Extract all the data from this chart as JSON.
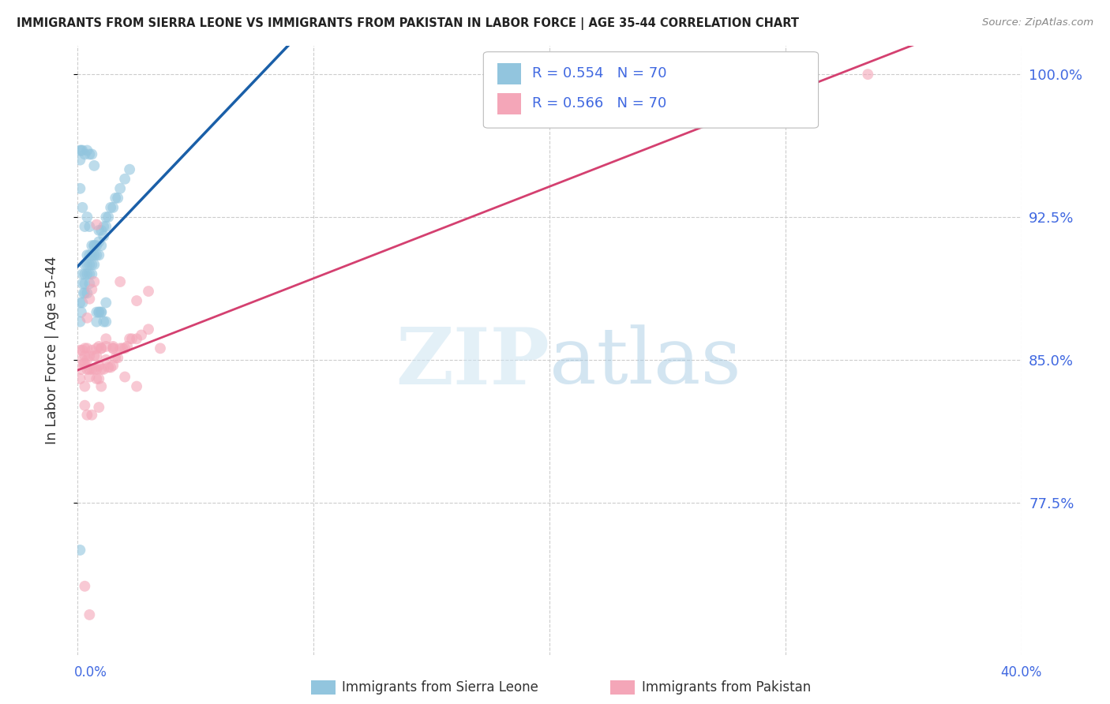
{
  "title": "IMMIGRANTS FROM SIERRA LEONE VS IMMIGRANTS FROM PAKISTAN IN LABOR FORCE | AGE 35-44 CORRELATION CHART",
  "source": "Source: ZipAtlas.com",
  "ylabel": "In Labor Force | Age 35-44",
  "legend_label_blue": "Immigrants from Sierra Leone",
  "legend_label_pink": "Immigrants from Pakistan",
  "legend_r_blue": "R = 0.554   N = 70",
  "legend_r_pink": "R = 0.566   N = 70",
  "watermark_zip": "ZIP",
  "watermark_atlas": "atlas",
  "color_blue": "#92c5de",
  "color_pink": "#f4a6b8",
  "color_trend_blue": "#1a5fa8",
  "color_trend_pink": "#d44070",
  "color_axis_right": "#4169E1",
  "color_legend_text": "#4169E1",
  "xmin": 0.0,
  "xmax": 0.4,
  "ymin": 0.695,
  "ymax": 1.015,
  "yticks": [
    0.775,
    0.85,
    0.925,
    1.0
  ],
  "ytick_labels": [
    "77.5%",
    "85.0%",
    "92.5%",
    "100.0%"
  ],
  "sierra_leone_x": [
    0.001,
    0.001,
    0.0015,
    0.002,
    0.002,
    0.002,
    0.0025,
    0.003,
    0.003,
    0.003,
    0.003,
    0.004,
    0.004,
    0.004,
    0.004,
    0.005,
    0.005,
    0.005,
    0.005,
    0.006,
    0.006,
    0.006,
    0.007,
    0.007,
    0.007,
    0.008,
    0.008,
    0.009,
    0.009,
    0.009,
    0.01,
    0.01,
    0.011,
    0.011,
    0.012,
    0.012,
    0.013,
    0.014,
    0.015,
    0.016,
    0.017,
    0.018,
    0.02,
    0.022,
    0.001,
    0.001,
    0.0015,
    0.002,
    0.003,
    0.004,
    0.005,
    0.006,
    0.007,
    0.008,
    0.009,
    0.01,
    0.012,
    0.001,
    0.002,
    0.003,
    0.004,
    0.005,
    0.006,
    0.007,
    0.008,
    0.009,
    0.01,
    0.011,
    0.012,
    0.001
  ],
  "sierra_leone_y": [
    0.87,
    0.88,
    0.875,
    0.88,
    0.89,
    0.895,
    0.885,
    0.885,
    0.89,
    0.895,
    0.9,
    0.885,
    0.895,
    0.9,
    0.905,
    0.89,
    0.895,
    0.9,
    0.905,
    0.895,
    0.9,
    0.905,
    0.9,
    0.905,
    0.91,
    0.905,
    0.91,
    0.905,
    0.912,
    0.918,
    0.91,
    0.918,
    0.915,
    0.92,
    0.92,
    0.925,
    0.925,
    0.93,
    0.93,
    0.935,
    0.935,
    0.94,
    0.945,
    0.95,
    0.955,
    0.96,
    0.96,
    0.96,
    0.958,
    0.96,
    0.958,
    0.958,
    0.952,
    0.87,
    0.875,
    0.875,
    0.88,
    0.94,
    0.93,
    0.92,
    0.925,
    0.92,
    0.91,
    0.91,
    0.875,
    0.875,
    0.875,
    0.87,
    0.87,
    0.75
  ],
  "pakistan_x": [
    0.001,
    0.001,
    0.0015,
    0.002,
    0.002,
    0.0025,
    0.003,
    0.003,
    0.003,
    0.004,
    0.004,
    0.004,
    0.005,
    0.005,
    0.006,
    0.006,
    0.007,
    0.007,
    0.008,
    0.008,
    0.008,
    0.009,
    0.009,
    0.01,
    0.01,
    0.011,
    0.012,
    0.013,
    0.014,
    0.015,
    0.015,
    0.016,
    0.017,
    0.018,
    0.019,
    0.02,
    0.021,
    0.022,
    0.023,
    0.025,
    0.027,
    0.03,
    0.025,
    0.03,
    0.035,
    0.004,
    0.005,
    0.006,
    0.007,
    0.008,
    0.009,
    0.01,
    0.012,
    0.015,
    0.02,
    0.025,
    0.003,
    0.004,
    0.006,
    0.008,
    0.01,
    0.012,
    0.015,
    0.018,
    0.003,
    0.005,
    0.335,
    0.003,
    0.005,
    0.009
  ],
  "pakistan_y": [
    0.855,
    0.84,
    0.845,
    0.855,
    0.85,
    0.848,
    0.848,
    0.852,
    0.856,
    0.845,
    0.85,
    0.856,
    0.845,
    0.852,
    0.845,
    0.855,
    0.845,
    0.852,
    0.84,
    0.845,
    0.852,
    0.84,
    0.847,
    0.845,
    0.856,
    0.845,
    0.85,
    0.846,
    0.846,
    0.847,
    0.856,
    0.851,
    0.851,
    0.856,
    0.856,
    0.856,
    0.857,
    0.861,
    0.861,
    0.861,
    0.863,
    0.866,
    0.881,
    0.886,
    0.856,
    0.872,
    0.882,
    0.887,
    0.891,
    0.921,
    0.857,
    0.836,
    0.857,
    0.857,
    0.841,
    0.836,
    0.826,
    0.821,
    0.821,
    0.856,
    0.856,
    0.861,
    0.856,
    0.891,
    0.731,
    0.716,
    1.0,
    0.836,
    0.841,
    0.825
  ]
}
